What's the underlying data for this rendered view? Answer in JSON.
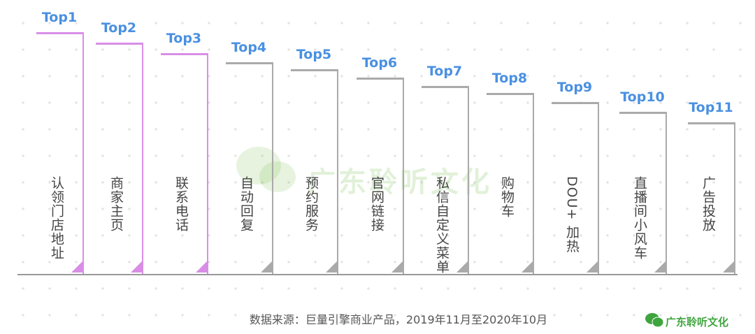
{
  "items": [
    {
      "rank": "Top1",
      "name": "认领门店地址",
      "color": "#d98ee6"
    },
    {
      "rank": "Top2",
      "name": "商家主页",
      "color": "#d98ee6"
    },
    {
      "rank": "Top3",
      "name": "联系电话",
      "color": "#d98ee6"
    },
    {
      "rank": "Top4",
      "name": "自动回复",
      "color": "#aaaaaa"
    },
    {
      "rank": "Top5",
      "name": "预约服务",
      "color": "#aaaaaa"
    },
    {
      "rank": "Top6",
      "name": "官网链接",
      "color": "#aaaaaa"
    },
    {
      "rank": "Top7",
      "name": "私信自定义菜单",
      "color": "#aaaaaa"
    },
    {
      "rank": "Top8",
      "name": "购物车",
      "color": "#aaaaaa"
    },
    {
      "rank": "Top9",
      "name": "DOU+ 加热",
      "color": "#aaaaaa"
    },
    {
      "rank": "Top10",
      "name": "直播间小风车",
      "color": "#aaaaaa"
    },
    {
      "rank": "Top11",
      "name": "广告投放",
      "color": "#aaaaaa"
    }
  ],
  "watermark": "广东聆听文化",
  "source": "数据来源：巨量引擎商业产品，2019年11月至2020年10月",
  "brand": "广东聆听文化"
}
